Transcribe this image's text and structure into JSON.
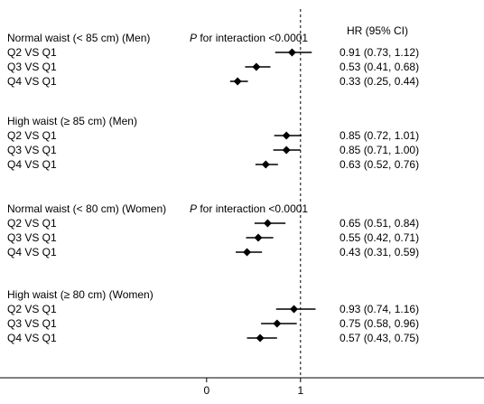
{
  "chart_data": {
    "type": "forest",
    "xaxis": {
      "range": [
        -2.2,
        1.55
      ],
      "ticks": [
        0,
        1
      ],
      "reference_line": 1,
      "reference_style": "dashed"
    },
    "hr_header": "HR (95% CI)",
    "groups": [
      {
        "title": "Normal waist (< 85 cm) (Men)",
        "p_interaction": {
          "p": "P",
          "rest": " for interaction <0.0001"
        },
        "rows": [
          {
            "label": "Q2 VS Q1",
            "hr": 0.91,
            "lo": 0.73,
            "hi": 1.12,
            "text": "0.91 (0.73, 1.12)"
          },
          {
            "label": "Q3 VS Q1",
            "hr": 0.53,
            "lo": 0.41,
            "hi": 0.68,
            "text": "0.53 (0.41, 0.68)"
          },
          {
            "label": "Q4 VS Q1",
            "hr": 0.33,
            "lo": 0.25,
            "hi": 0.44,
            "text": "0.33 (0.25, 0.44)"
          }
        ]
      },
      {
        "title": "High waist (≥ 85 cm) (Men)",
        "rows": [
          {
            "label": "Q2 VS Q1",
            "hr": 0.85,
            "lo": 0.72,
            "hi": 1.01,
            "text": "0.85 (0.72, 1.01)"
          },
          {
            "label": "Q3 VS Q1",
            "hr": 0.85,
            "lo": 0.71,
            "hi": 1.0,
            "text": "0.85 (0.71, 1.00)"
          },
          {
            "label": "Q4 VS Q1",
            "hr": 0.63,
            "lo": 0.52,
            "hi": 0.76,
            "text": "0.63 (0.52, 0.76)"
          }
        ]
      },
      {
        "title": "Normal waist (< 80 cm) (Women)",
        "p_interaction": {
          "p": "P",
          "rest": " for interaction <0.0001"
        },
        "rows": [
          {
            "label": "Q2 VS Q1",
            "hr": 0.65,
            "lo": 0.51,
            "hi": 0.84,
            "text": "0.65 (0.51, 0.84)"
          },
          {
            "label": "Q3 VS Q1",
            "hr": 0.55,
            "lo": 0.42,
            "hi": 0.71,
            "text": "0.55 (0.42, 0.71)"
          },
          {
            "label": "Q4 VS Q1",
            "hr": 0.43,
            "lo": 0.31,
            "hi": 0.59,
            "text": "0.43 (0.31, 0.59)"
          }
        ]
      },
      {
        "title": "High waist (≥ 80 cm) (Women)",
        "rows": [
          {
            "label": "Q2 VS Q1",
            "hr": 0.93,
            "lo": 0.74,
            "hi": 1.16,
            "text": "0.93 (0.74, 1.16)"
          },
          {
            "label": "Q3 VS Q1",
            "hr": 0.75,
            "lo": 0.58,
            "hi": 0.96,
            "text": "0.75 (0.58, 0.96)"
          },
          {
            "label": "Q4 VS Q1",
            "hr": 0.57,
            "lo": 0.43,
            "hi": 0.75,
            "text": "0.57 (0.43, 0.75)"
          }
        ]
      }
    ]
  }
}
